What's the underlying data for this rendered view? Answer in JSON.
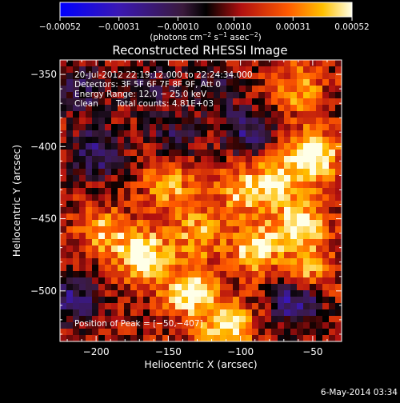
{
  "chart_data": {
    "type": "heatmap",
    "title": "Reconstructed RHESSI Image",
    "xlabel": "Heliocentric X (arcsec)",
    "ylabel": "Heliocentric Y (arcsec)",
    "xlim": [
      -225,
      -30
    ],
    "ylim": [
      -535,
      -340
    ],
    "x_ticks": [
      -200,
      -150,
      -100,
      -50
    ],
    "y_ticks": [
      -350,
      -400,
      -450,
      -500
    ],
    "x_tick_labels": [
      "−200",
      "−150",
      "−100",
      "−50"
    ],
    "y_tick_labels": [
      "−350",
      "−400",
      "−450",
      "−500"
    ],
    "colorbar": {
      "range": [
        -0.00052,
        0.00052
      ],
      "ticks": [
        -0.00052,
        -0.00031,
        -0.0001,
        0.0001,
        0.00031,
        0.00052
      ],
      "tick_labels": [
        "−0.00052",
        "−0.00031",
        "−0.00010",
        "0.00010",
        "0.00031",
        "0.00052"
      ],
      "units_base": "(photons cm",
      "units_exp1": "−2",
      "units_mid": " s",
      "units_exp2": "−1",
      "units_mid2": " asec",
      "units_exp3": "−2",
      "units_end": ")"
    },
    "annotations": {
      "time_range": "20-Jul-2012 22:19:12.000 to 22:24:34.000",
      "detectors": "Detectors: 3F 5F 6F 7F 8F 9F, Att 0",
      "energy_range": "Energy Range: 12.0 − 25.0 keV",
      "clean_label": "Clean",
      "total_counts": "Total counts: 4.81E+03",
      "peak": "Position of Peak = [−50,−407]"
    },
    "grid": false,
    "sources": [
      {
        "x": -50,
        "y": -407,
        "value": 0.00052
      },
      {
        "x": -58,
        "y": -455,
        "value": 0.00045
      },
      {
        "x": -167,
        "y": -475,
        "value": 0.00047
      },
      {
        "x": -135,
        "y": -500,
        "value": 0.00046
      },
      {
        "x": -55,
        "y": -492,
        "value": 0.0004
      },
      {
        "x": -90,
        "y": -470,
        "value": 0.00038
      },
      {
        "x": -110,
        "y": -525,
        "value": 0.00042
      },
      {
        "x": -75,
        "y": -425,
        "value": 0.00035
      },
      {
        "x": -195,
        "y": -460,
        "value": 0.0003
      },
      {
        "x": -100,
        "y": -430,
        "value": 0.0003
      },
      {
        "x": -150,
        "y": -425,
        "value": 0.0003
      },
      {
        "x": -130,
        "y": -460,
        "value": 0.00028
      },
      {
        "x": -60,
        "y": -360,
        "value": 0.00025
      },
      {
        "x": -200,
        "y": -405,
        "value": -0.00031
      },
      {
        "x": -210,
        "y": -360,
        "value": -0.00025
      },
      {
        "x": -95,
        "y": -390,
        "value": -0.0003
      },
      {
        "x": -145,
        "y": -395,
        "value": -0.0002
      },
      {
        "x": -60,
        "y": -505,
        "value": -0.00052
      },
      {
        "x": -215,
        "y": -505,
        "value": -0.0003
      },
      {
        "x": -165,
        "y": -360,
        "value": -0.0002
      },
      {
        "x": -120,
        "y": -360,
        "value": -0.00018
      }
    ]
  },
  "footer": {
    "date": "6-May-2014 03:34"
  }
}
